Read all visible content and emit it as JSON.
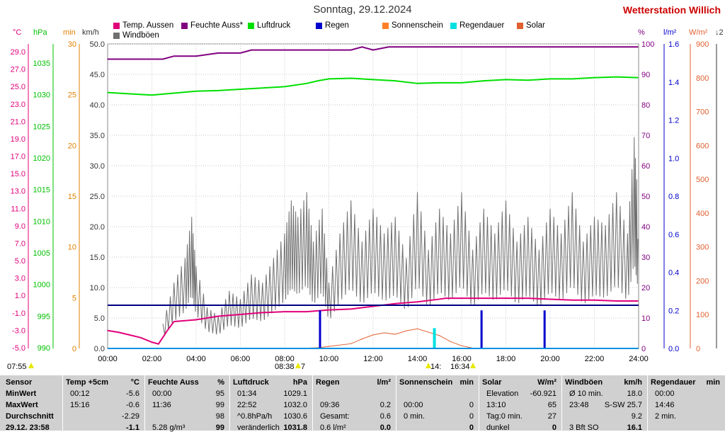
{
  "header": {
    "title": "Sonntag, 29.12.2024",
    "station": "Wetterstation Willich"
  },
  "legend": [
    {
      "label": "Temp. Aussen",
      "color": "#e0007a"
    },
    {
      "label": "Feuchte Auss*",
      "color": "#800080"
    },
    {
      "label": "Luftdruck",
      "color": "#00e000"
    },
    {
      "label": "Regen",
      "color": "#0000cc"
    },
    {
      "label": "Sonnenschein",
      "color": "#ff7f27"
    },
    {
      "label": "Regendauer",
      "color": "#00e0e0"
    },
    {
      "label": "Solar",
      "color": "#e06030"
    },
    {
      "label": "Windböen",
      "color": "#707070"
    }
  ],
  "axes": {
    "temp": {
      "unit": "°C",
      "color": "#e0007a",
      "ticks": [
        "29.0",
        "27.0",
        "25.0",
        "23.0",
        "21.0",
        "19.0",
        "17.0",
        "15.0",
        "13.0",
        "11.0",
        "9.0",
        "7.0",
        "5.0",
        "3.0",
        "1.0",
        "-1.0",
        "-3.0",
        "-5.0"
      ]
    },
    "pressure": {
      "unit": "hPa",
      "color": "#00c000",
      "ticks": [
        "1035",
        "1030",
        "1025",
        "1020",
        "1015",
        "1010",
        "1005",
        "1000",
        "995",
        "990"
      ]
    },
    "minutes": {
      "unit": "min",
      "color": "#e08000",
      "ticks": [
        "30",
        "25",
        "20",
        "15",
        "10",
        "5",
        "0"
      ]
    },
    "wind": {
      "unit": "km/h",
      "color": "#333333",
      "ticks": [
        "50.0",
        "45.0",
        "40.0",
        "35.0",
        "30.0",
        "25.0",
        "20.0",
        "15.0",
        "10.0",
        "5.0",
        "0.0"
      ]
    },
    "humidity": {
      "unit": "%",
      "color": "#800080",
      "ticks": [
        "100",
        "90",
        "80",
        "70",
        "60",
        "50",
        "40",
        "30",
        "20",
        "10",
        "0"
      ]
    },
    "rain": {
      "unit": "l/m²",
      "color": "#0000cc",
      "ticks": [
        "1.6",
        "1.4",
        "1.2",
        "1.0",
        "0.8",
        "0.6",
        "0.4",
        "0.2",
        "0.0"
      ]
    },
    "solar": {
      "unit": "W/m²",
      "color": "#e06030",
      "ticks": [
        "900",
        "800",
        "700",
        "600",
        "500",
        "400",
        "300",
        "200",
        "100",
        "0"
      ]
    },
    "right_extra": {
      "unit": "↓2",
      "color": "#333333"
    }
  },
  "chart_data": {
    "type": "line",
    "x_ticks": [
      "00:00",
      "02:00",
      "04:00",
      "06:00",
      "08:00",
      "10:00",
      "12:00",
      "14:00",
      "16:00",
      "18:00",
      "20:00",
      "22:00",
      "24:00"
    ],
    "x_range_hours": [
      0,
      24
    ],
    "series": [
      {
        "name": "Temp. Aussen",
        "color": "#e0007a",
        "unit": "°C",
        "x": [
          0,
          0.5,
          1,
          1.5,
          2,
          2.3,
          2.7,
          3,
          4,
          5,
          6,
          7,
          8,
          9,
          10,
          11,
          12,
          13,
          14,
          15,
          15.27,
          16,
          17,
          18,
          19,
          20,
          21,
          22,
          23,
          23.97
        ],
        "y": [
          -3.0,
          -3.2,
          -3.5,
          -3.8,
          -4.3,
          -4.5,
          -3.0,
          -2.0,
          -1.8,
          -1.4,
          -1.2,
          -1.0,
          -0.9,
          -0.9,
          -0.7,
          -0.6,
          -0.3,
          0.0,
          0.2,
          0.5,
          0.6,
          0.6,
          0.6,
          0.6,
          0.6,
          0.5,
          0.4,
          0.4,
          0.3,
          0.3
        ]
      },
      {
        "name": "Feuchte Auss*",
        "color": "#800080",
        "unit": "%",
        "x": [
          0,
          2.5,
          3,
          4,
          5,
          6,
          6.5,
          8,
          10,
          11,
          11.5,
          12,
          12.7,
          13.3,
          14,
          16,
          18,
          20,
          22,
          23.97
        ],
        "y": [
          95,
          95,
          96,
          96,
          97,
          97,
          98,
          98,
          98,
          98,
          99,
          98,
          99,
          99,
          99,
          99,
          99,
          99,
          99,
          99
        ]
      },
      {
        "name": "Luftdruck",
        "color": "#00e000",
        "unit": "hPa",
        "x": [
          0,
          1,
          2,
          3,
          4,
          5,
          6,
          7,
          8,
          9,
          9.5,
          10,
          11,
          12,
          13,
          14,
          15,
          16,
          17,
          18,
          19,
          20,
          21,
          22,
          23,
          23.97
        ],
        "y": [
          1029.5,
          1029.3,
          1029.1,
          1029.4,
          1029.7,
          1029.8,
          1030.0,
          1030.2,
          1030.4,
          1030.9,
          1031.3,
          1031.6,
          1031.7,
          1031.5,
          1031.3,
          1030.9,
          1031.0,
          1031.0,
          1031.3,
          1031.5,
          1031.4,
          1031.6,
          1031.6,
          1031.8,
          1031.9,
          1031.8
        ]
      },
      {
        "name": "Regen",
        "color": "#0000cc",
        "unit": "l/m²",
        "x": [
          9.6,
          16.9,
          19.75
        ],
        "y": [
          0.2,
          0.2,
          0.2
        ]
      },
      {
        "name": "Regendauer",
        "color": "#00e0e0",
        "unit": "min",
        "x": [
          14.77
        ],
        "y": [
          2
        ]
      },
      {
        "name": "Solar",
        "color": "#e06030",
        "unit": "W/m²",
        "x": [
          8.63,
          9.5,
          10,
          11,
          11.5,
          12,
          12.5,
          13,
          13.5,
          14,
          14.5,
          15,
          15.5,
          16,
          16.57
        ],
        "y": [
          0,
          2,
          6,
          14,
          28,
          40,
          46,
          42,
          52,
          58,
          48,
          38,
          20,
          8,
          0
        ]
      },
      {
        "name": "Windböen",
        "color": "#707070",
        "unit": "km/h",
        "x": [
          2.5,
          3,
          3.5,
          3.8,
          4,
          4.5,
          5,
          5.5,
          6,
          6.5,
          7,
          7.5,
          8,
          8.3,
          8.6,
          9,
          9.3,
          9.7,
          10,
          10.5,
          11,
          11.5,
          12,
          12.5,
          13,
          13.5,
          14,
          14.5,
          15,
          15.5,
          16,
          16.5,
          17,
          17.5,
          18,
          18.5,
          19,
          19.5,
          20,
          20.5,
          21,
          21.5,
          22,
          22.5,
          23,
          23.5,
          23.8,
          23.97
        ],
        "y": [
          3,
          8,
          11,
          16,
          10,
          5,
          4,
          7,
          6,
          9,
          8,
          11,
          14,
          18,
          16,
          19,
          13,
          17,
          8,
          14,
          18,
          13,
          17,
          14,
          16,
          11,
          19,
          12,
          17,
          14,
          19,
          12,
          17,
          14,
          18,
          13,
          16,
          12,
          17,
          14,
          19,
          13,
          16,
          15,
          19,
          14,
          25.7,
          18
        ]
      }
    ],
    "wind_ylim": [
      0,
      50
    ],
    "temp_ylim": [
      -5,
      29
    ],
    "pressure_ylim": [
      990,
      1037
    ],
    "humidity_ylim": [
      0,
      100
    ],
    "rain_ylim": [
      0,
      1.6
    ],
    "solar_ylim": [
      0,
      900
    ],
    "minutes_ylim": [
      0,
      30
    ],
    "annotations": [
      "07:55",
      "08:38",
      "7",
      "14:",
      "16:34"
    ]
  },
  "table": {
    "row_labels": [
      "Sensor",
      "MinWert",
      "MaxWert",
      "Durchschnitt",
      "29.12. 23:58"
    ],
    "cols": [
      {
        "head": "Temp +5cm",
        "unit": "°C",
        "rows": [
          [
            "00:12",
            "-5.6"
          ],
          [
            "15:16",
            "-0.6"
          ],
          [
            "",
            "-2.29"
          ],
          [
            "",
            "-1.1"
          ]
        ]
      },
      {
        "head": "Feuchte Auss",
        "unit": "%",
        "rows": [
          [
            "00:00",
            "95"
          ],
          [
            "11:36",
            "99"
          ],
          [
            "",
            "98"
          ],
          [
            "5.28 g/m³",
            "99"
          ]
        ]
      },
      {
        "head": "Luftdruck",
        "unit": "hPa",
        "rows": [
          [
            "01:34",
            "1029.1"
          ],
          [
            "22:52",
            "1032.0"
          ],
          [
            "^0.8hPa/h",
            "1030.6"
          ],
          [
            "veränderlich",
            "1031.8"
          ]
        ]
      },
      {
        "head": "Regen",
        "unit": "l/m²",
        "rows": [
          [
            "",
            ""
          ],
          [
            "09:36",
            "0.2"
          ],
          [
            "Gesamt:",
            "0.6"
          ],
          [
            "0.6 l/m²",
            "0.0"
          ]
        ]
      },
      {
        "head": "Sonnenschein",
        "unit": "min",
        "rows": [
          [
            "",
            ""
          ],
          [
            "00:00",
            "0"
          ],
          [
            "0 min.",
            "0"
          ],
          [
            "",
            "0"
          ]
        ]
      },
      {
        "head": "Solar",
        "unit": "W/m²",
        "rows": [
          [
            "Elevation",
            "-60.921"
          ],
          [
            "13:10",
            "65"
          ],
          [
            "Tag:0 min.",
            "27"
          ],
          [
            "dunkel",
            "0"
          ]
        ]
      },
      {
        "head": "Windböen",
        "unit": "km/h",
        "rows": [
          [
            "Ø 10 min.",
            "18.0"
          ],
          [
            "23:48",
            "S-SW 25.7"
          ],
          [
            "",
            "9.2"
          ],
          [
            "3 Bft SO",
            "16.1"
          ]
        ]
      },
      {
        "head": "Regendauer",
        "unit": "min",
        "rows": [
          [
            "00:00",
            ""
          ],
          [
            "14:46",
            ""
          ],
          [
            "2 min.",
            ""
          ],
          [
            "",
            ""
          ]
        ]
      }
    ]
  }
}
